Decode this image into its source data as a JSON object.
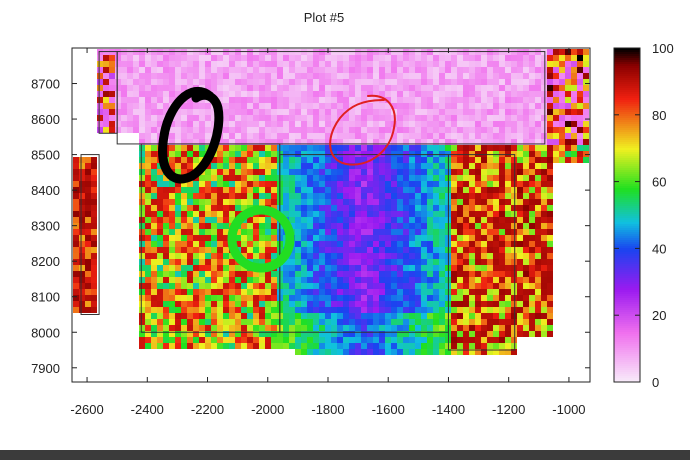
{
  "chart_data": {
    "type": "heatmap",
    "title": "Plot #5",
    "xlabel": "",
    "ylabel": "",
    "xlim": [
      -2650,
      -930
    ],
    "ylim": [
      7860,
      8800
    ],
    "x_ticks": [
      -2600,
      -2400,
      -2200,
      -2000,
      -1800,
      -1600,
      -1400,
      -1200,
      -1000
    ],
    "y_ticks": [
      7900,
      8000,
      8100,
      8200,
      8300,
      8400,
      8500,
      8600,
      8700
    ],
    "colorbar": {
      "range": [
        0,
        100
      ],
      "ticks": [
        0,
        20,
        40,
        60,
        80,
        100
      ],
      "stops": [
        {
          "v": 0,
          "c": "#f8eefa"
        },
        {
          "v": 15,
          "c": "#f070ee"
        },
        {
          "v": 28,
          "c": "#9a1af0"
        },
        {
          "v": 40,
          "c": "#1a44f0"
        },
        {
          "v": 48,
          "c": "#10c0e0"
        },
        {
          "v": 58,
          "c": "#20e020"
        },
        {
          "v": 70,
          "c": "#f0f020"
        },
        {
          "v": 85,
          "c": "#f02010"
        },
        {
          "v": 95,
          "c": "#8a0000"
        },
        {
          "v": 100,
          "c": "#000000"
        }
      ]
    },
    "regions": [
      {
        "name": "top-pink-band",
        "x": [
          -2500,
          -1080
        ],
        "y": [
          8530,
          8790
        ],
        "level": 8
      },
      {
        "name": "upper-left-pink",
        "x": [
          -2560,
          -2500
        ],
        "y": [
          8560,
          8790
        ],
        "level": 14
      },
      {
        "name": "left-speckled",
        "x": [
          -2420,
          -1960
        ],
        "y": [
          8000,
          8530
        ],
        "level": 62
      },
      {
        "name": "center-purple",
        "x": [
          -1960,
          -1400
        ],
        "y": [
          8000,
          8500
        ],
        "level": 28
      },
      {
        "name": "right-speckled",
        "x": [
          -1400,
          -1180
        ],
        "y": [
          7950,
          8500
        ],
        "level": 70
      },
      {
        "name": "far-left-dark",
        "x": [
          -2620,
          -2560
        ],
        "y": [
          8050,
          8500
        ],
        "level": 92
      }
    ],
    "grid": false,
    "legend": "colorbar-right"
  },
  "annotations": [
    {
      "name": "black-loop",
      "color": "#000000"
    },
    {
      "name": "red-loop",
      "color": "#e02020"
    },
    {
      "name": "green-ring",
      "color": "#22dd22"
    }
  ]
}
